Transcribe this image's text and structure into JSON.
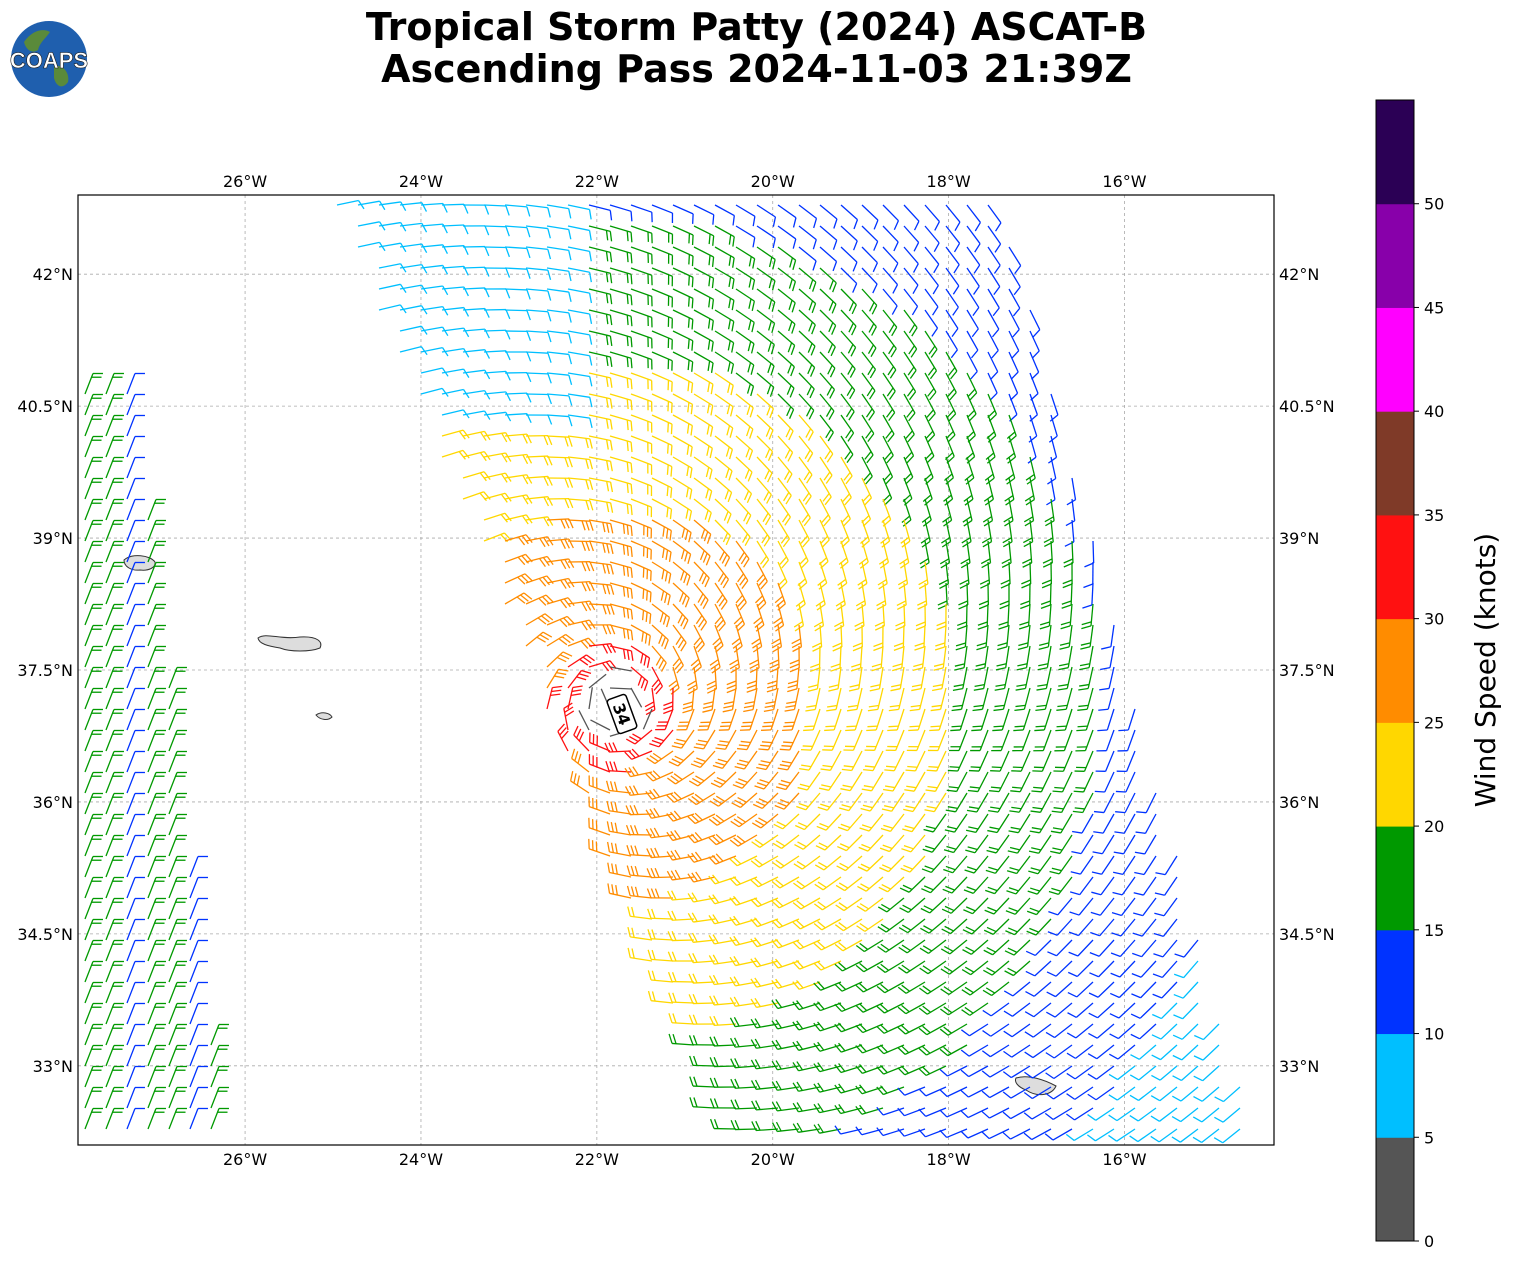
{
  "title": {
    "line1": "Tropical Storm Patty (2024) ASCAT-B",
    "line2": "Ascending Pass 2024-11-03 21:39Z"
  },
  "logo": {
    "text": "COAPS",
    "icon": "globe-logo"
  },
  "map": {
    "lon_range": [
      -27.9,
      -14.3
    ],
    "lat_range": [
      32.1,
      42.9
    ],
    "lon_ticks": [
      "26°W",
      "24°W",
      "22°W",
      "20°W",
      "18°W",
      "16°W"
    ],
    "lon_tick_values": [
      -26,
      -24,
      -22,
      -20,
      -18,
      -16
    ],
    "lat_ticks": [
      "42°N",
      "40.5°N",
      "39°N",
      "37.5°N",
      "36°N",
      "34.5°N",
      "33°N"
    ],
    "lat_tick_values": [
      42,
      40.5,
      39,
      37.5,
      36,
      34.5,
      33
    ],
    "gridlines": true,
    "storm_marker": {
      "label": "34",
      "lon": -21.8,
      "lat": 37.1
    }
  },
  "colorbar": {
    "label": "Wind Speed (knots)",
    "ticks": [
      "0",
      "5",
      "10",
      "15",
      "20",
      "25",
      "30",
      "35",
      "40",
      "45",
      "50"
    ],
    "colors": [
      "#555555",
      "#00bfff",
      "#0033ff",
      "#009900",
      "#ffd700",
      "#ff8c00",
      "#ff1111",
      "#7f3a28",
      "#ff00ff",
      "#8800aa",
      "#2b0055"
    ]
  }
}
